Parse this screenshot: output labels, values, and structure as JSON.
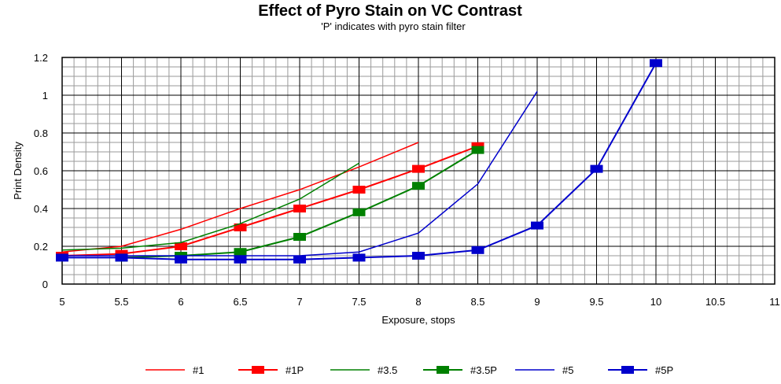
{
  "chart_data": {
    "type": "line",
    "title": "Effect of Pyro Stain on VC Contrast",
    "subtitle": "'P' indicates with pyro stain filter",
    "xlabel": "Exposure, stops",
    "ylabel": "Print Density",
    "xlim": [
      5,
      11
    ],
    "ylim": [
      0,
      1.2
    ],
    "x_ticks": [
      5,
      5.5,
      6,
      6.5,
      7,
      7.5,
      8,
      8.5,
      9,
      9.5,
      10,
      10.5,
      11
    ],
    "x_tick_labels": [
      "5",
      "5.5",
      "6",
      "6.5",
      "7",
      "7.5",
      "8",
      "8.5",
      "9",
      "9.5",
      "10",
      "10.5",
      "11"
    ],
    "y_ticks": [
      0,
      0.2,
      0.4,
      0.6,
      0.8,
      1,
      1.2
    ],
    "y_tick_labels": [
      "0",
      "0.2",
      "0.4",
      "0.6",
      "0.8",
      "1",
      "1.2"
    ],
    "grid": true,
    "legend_position": "bottom",
    "series": [
      {
        "name": "#1",
        "color": "#ff0000",
        "marker": false,
        "x": [
          5,
          5.5,
          6,
          6.5,
          7,
          7.5,
          8
        ],
        "y": [
          0.17,
          0.2,
          0.29,
          0.4,
          0.5,
          0.62,
          0.75
        ]
      },
      {
        "name": "#1P",
        "color": "#ff0000",
        "marker": true,
        "x": [
          5,
          5.5,
          6,
          6.5,
          7,
          7.5,
          8,
          8.5
        ],
        "y": [
          0.15,
          0.16,
          0.2,
          0.3,
          0.4,
          0.5,
          0.61,
          0.73
        ]
      },
      {
        "name": "#3.5",
        "color": "#008000",
        "marker": false,
        "x": [
          5,
          5.5,
          6,
          6.5,
          7,
          7.5
        ],
        "y": [
          0.18,
          0.19,
          0.22,
          0.32,
          0.45,
          0.64
        ]
      },
      {
        "name": "#3.5P",
        "color": "#008000",
        "marker": true,
        "x": [
          5.5,
          6,
          6.5,
          7,
          7.5,
          8,
          8.5
        ],
        "y": [
          0.14,
          0.15,
          0.17,
          0.25,
          0.38,
          0.52,
          0.71
        ]
      },
      {
        "name": "#5",
        "color": "#0000cc",
        "marker": false,
        "x": [
          5,
          5.5,
          6,
          6.5,
          7,
          7.5,
          8,
          8.5,
          9
        ],
        "y": [
          0.15,
          0.15,
          0.15,
          0.15,
          0.15,
          0.17,
          0.27,
          0.53,
          1.02
        ]
      },
      {
        "name": "#5P",
        "color": "#0000cc",
        "marker": true,
        "x": [
          5,
          5.5,
          6,
          6.5,
          7,
          7.5,
          8,
          8.5,
          9,
          9.5,
          10
        ],
        "y": [
          0.14,
          0.14,
          0.13,
          0.13,
          0.13,
          0.14,
          0.15,
          0.18,
          0.31,
          0.61,
          1.17
        ]
      }
    ]
  }
}
